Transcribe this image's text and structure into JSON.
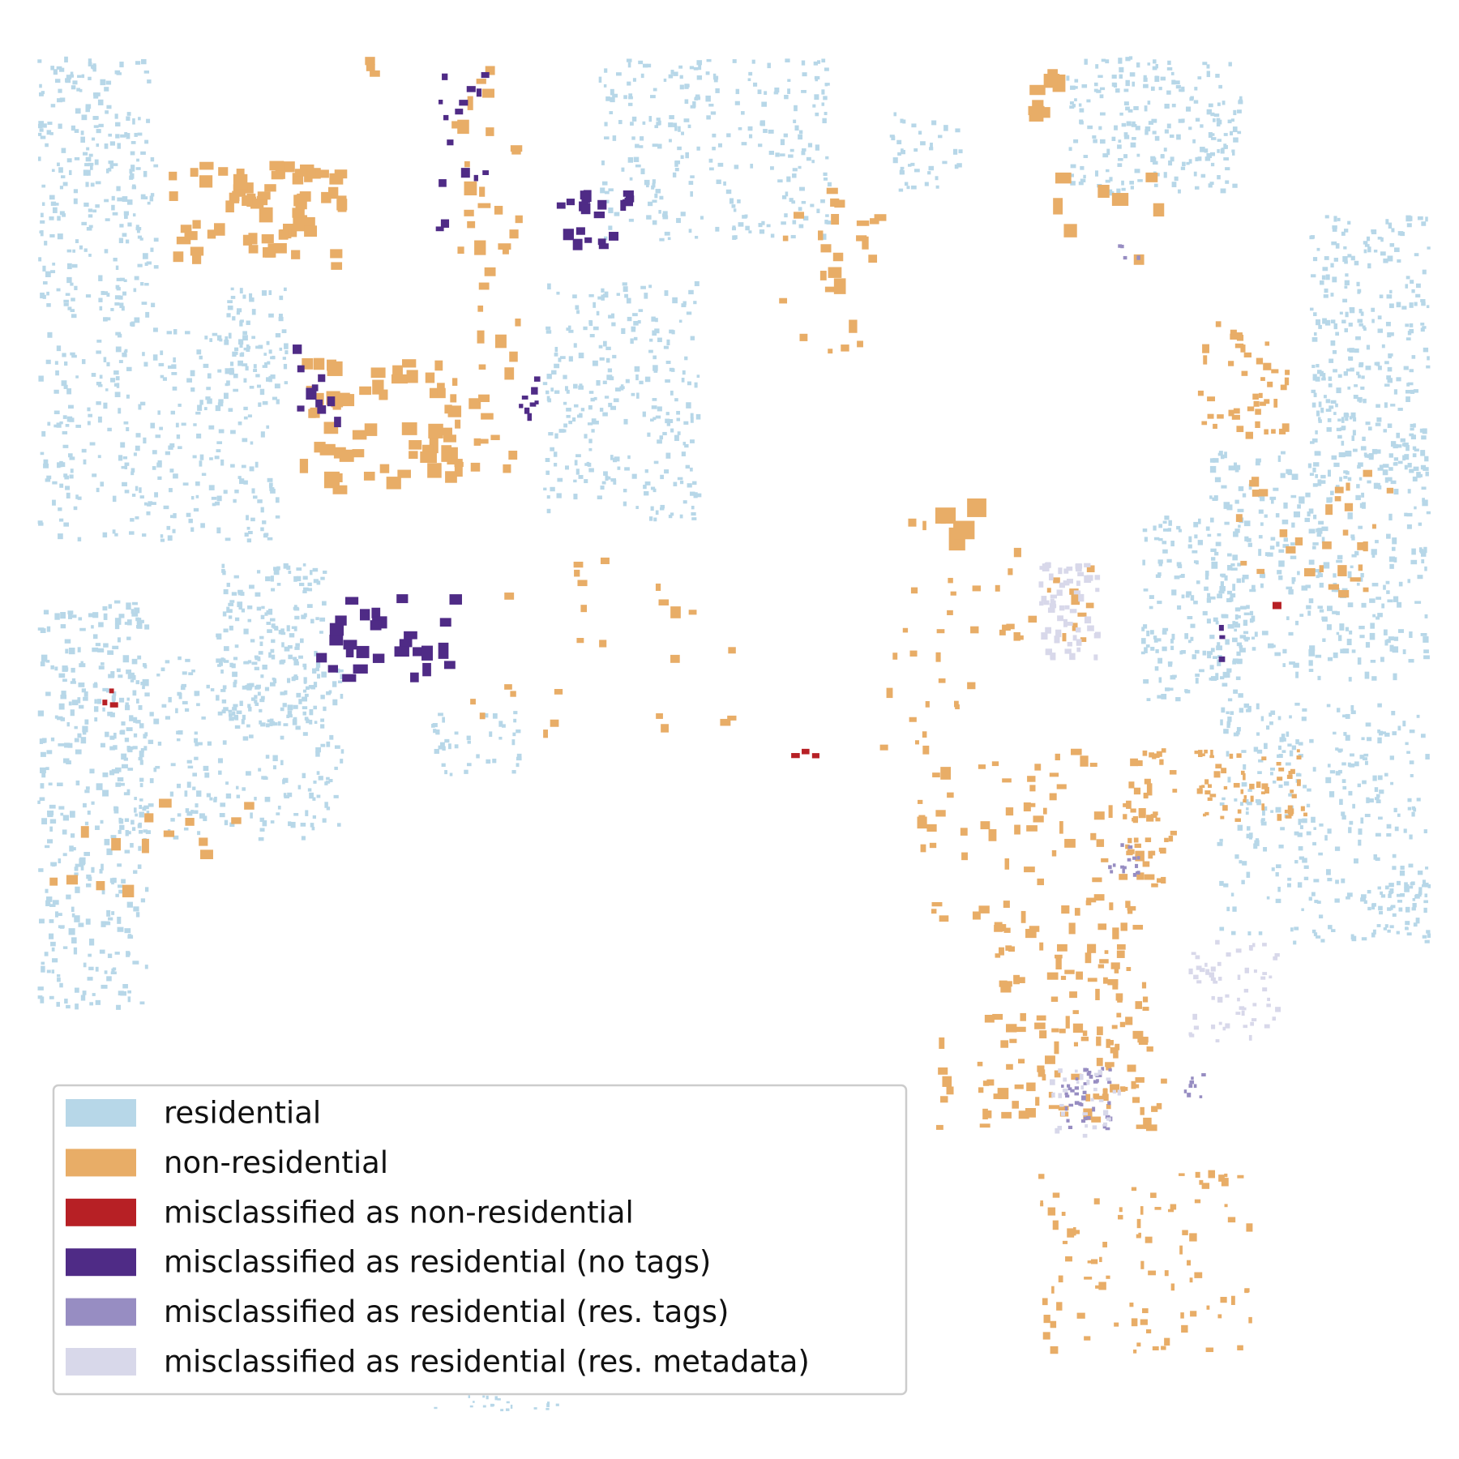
{
  "legend": {
    "items": [
      {
        "label": "residential",
        "color": "#b7d7e8"
      },
      {
        "label": "non-residential",
        "color": "#e8ad67"
      },
      {
        "label": "misclassified as non-residential",
        "color": "#b72025"
      },
      {
        "label": "misclassified as residential (no tags)",
        "color": "#4f2b86"
      },
      {
        "label": "misclassified as residential (res. tags)",
        "color": "#978dc2"
      },
      {
        "label": "misclassified as residential (res. metadata)",
        "color": "#d8d8ea"
      }
    ]
  }
}
